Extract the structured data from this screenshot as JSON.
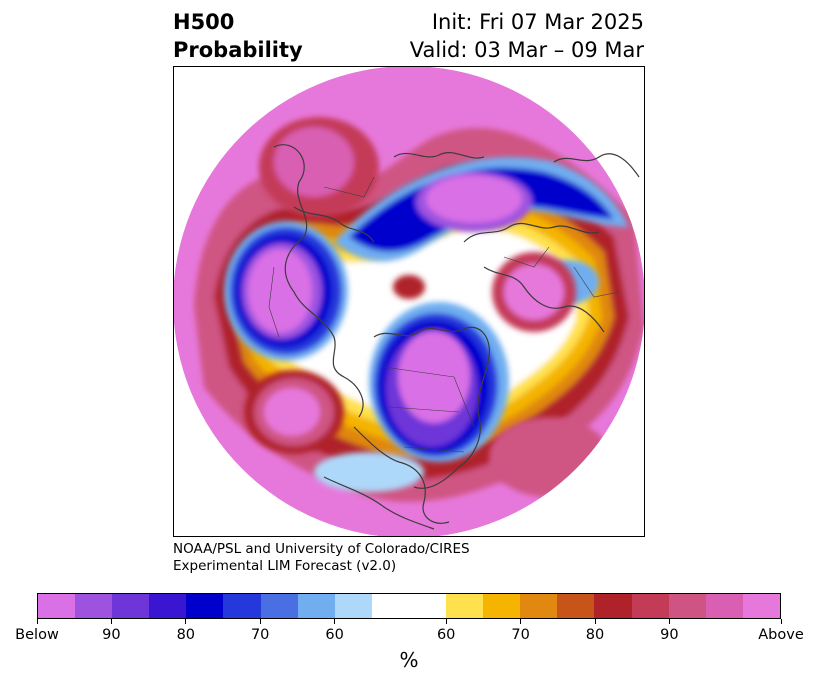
{
  "header": {
    "title_line1": "H500",
    "title_line2": "Probability",
    "init": "Init: Fri 07 Mar 2025",
    "valid": "Valid: 03 Mar – 09 Mar"
  },
  "credit": {
    "line1": "NOAA/PSL and University of Colorado/CIRES",
    "line2": "Experimental LIM Forecast (v2.0)"
  },
  "colorbar": {
    "colors": [
      "#da70e6",
      "#9d52e0",
      "#6e36d8",
      "#3a16d2",
      "#0000cd",
      "#2538db",
      "#4a6fe3",
      "#70aef0",
      "#add8fa",
      "#ffffff",
      "#ffffff",
      "#ffe14d",
      "#f4b400",
      "#e08810",
      "#c75418",
      "#b0222a",
      "#c43b58",
      "#cf5483",
      "#d95fb3",
      "#e778db"
    ],
    "tick_labels": [
      "Below",
      "90",
      "80",
      "70",
      "60",
      "60",
      "70",
      "80",
      "90",
      "Above"
    ],
    "unit": "%"
  },
  "map": {
    "projection": "north-polar-stereographic",
    "colors": {
      "above_strong": "#e778db",
      "above_mid": "#cf5483",
      "above_low": "#b0222a",
      "above_orange": "#e08810",
      "above_yellow": "#f4b400",
      "above_pale": "#ffe14d",
      "below_pale": "#add8fa",
      "below_light": "#70aef0",
      "below_mid": "#2538db",
      "below_strong": "#0000cd",
      "below_max": "#da70e6",
      "coast": "#3c3c3c"
    }
  }
}
